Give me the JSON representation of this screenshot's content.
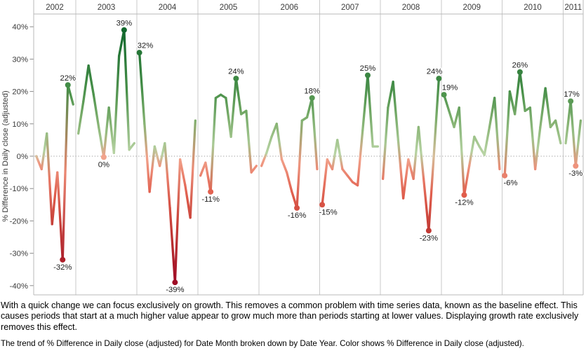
{
  "notes": {
    "paragraph": "With a quick change we can focus exclusively on growth.  This removes a common problem with time series data, known as the baseline effect.  This causes periods that start at a much higher value appear to grow much more than periods starting at lower values.  Displaying growth rate exclusively removes this effect.",
    "caption": "The trend of % Difference in Daily close (adjusted) for Date Month broken down by Date Year.  Color shows % Difference in Daily close (adjusted)."
  },
  "chart_data": {
    "type": "line",
    "title": "",
    "ylabel": "% Difference in Daily close (adjusted)",
    "x_field": "Date Month",
    "panel_field": "Date Year",
    "ylim": [
      -43,
      44
    ],
    "grid": "zero-line-only",
    "zero_line_style": "dotted",
    "y_ticks": [
      {
        "label": "40%",
        "value": 40
      },
      {
        "label": "30%",
        "value": 30
      },
      {
        "label": "20%",
        "value": 20
      },
      {
        "label": "10%",
        "value": 10
      },
      {
        "label": "0%",
        "value": 0
      },
      {
        "label": "-10%",
        "value": -10
      },
      {
        "label": "-20%",
        "value": -20
      },
      {
        "label": "-30%",
        "value": -30
      },
      {
        "label": "-40%",
        "value": -40
      }
    ],
    "colors": {
      "negative_dark": "#9c0824",
      "negative_light": "#f2a58e",
      "positive_light": "#bcd6a8",
      "positive_dark": "#0f662b",
      "divider": "#c9c9c9",
      "border": "#b9b9b9",
      "zero_line": "#9e9e9e",
      "axis_text": "#3c3c3c",
      "label_text": "#1c1c1c"
    },
    "color_scale_stops": [
      {
        "v": -40,
        "c": "#9c0824"
      },
      {
        "v": -25,
        "c": "#bb3330"
      },
      {
        "v": -12,
        "c": "#e05c4b"
      },
      {
        "v": -0.01,
        "c": "#f2a58e"
      },
      {
        "v": 0.01,
        "c": "#bcd6a8"
      },
      {
        "v": 10,
        "c": "#88b474"
      },
      {
        "v": 20,
        "c": "#489049"
      },
      {
        "v": 40,
        "c": "#0f662b"
      }
    ],
    "years": [
      {
        "label": "2002",
        "values": [
          0,
          -4,
          7,
          -21,
          -5,
          -32,
          22,
          16
        ],
        "annotations": [
          {
            "text": "22%",
            "month": 6,
            "placement": "above"
          },
          {
            "text": "-32%",
            "month": 5,
            "placement": "below"
          }
        ]
      },
      {
        "label": "2003",
        "values": [
          7,
          17,
          28,
          19,
          9,
          -0.3,
          15,
          1,
          31,
          39,
          2,
          4
        ],
        "annotations": [
          {
            "text": "39%",
            "month": 9,
            "placement": "above"
          },
          {
            "text": "0%",
            "month": 5,
            "placement": "below"
          }
        ]
      },
      {
        "label": "2004",
        "values": [
          32,
          10,
          -11,
          3,
          -3,
          4,
          -16,
          -39,
          -1,
          -9,
          -19,
          11
        ],
        "annotations": [
          {
            "text": "32%",
            "month": 0,
            "placement": "above"
          },
          {
            "text": "-39%",
            "month": 7,
            "placement": "below"
          }
        ]
      },
      {
        "label": "2005",
        "values": [
          -6,
          -2,
          -11,
          18,
          19,
          18,
          6,
          24,
          13,
          14,
          -5,
          -3
        ],
        "annotations": [
          {
            "text": "24%",
            "month": 7,
            "placement": "above"
          },
          {
            "text": "-11%",
            "month": 2,
            "placement": "below"
          }
        ]
      },
      {
        "label": "2006",
        "values": [
          -3,
          1,
          6,
          10,
          -1,
          -5,
          -11,
          -16,
          11,
          12,
          18,
          -4
        ],
        "annotations": [
          {
            "text": "18%",
            "month": 10,
            "placement": "above"
          },
          {
            "text": "-16%",
            "month": 7,
            "placement": "below"
          }
        ]
      },
      {
        "label": "2007",
        "values": [
          -15,
          -1,
          -4,
          5,
          -4,
          -6,
          -8,
          -9,
          8,
          25,
          3,
          3
        ],
        "annotations": [
          {
            "text": "25%",
            "month": 9,
            "placement": "above"
          },
          {
            "text": "-15%",
            "month": 0,
            "placement": "below"
          }
        ]
      },
      {
        "label": "2008",
        "values": [
          -7,
          15,
          23,
          5,
          -13,
          -1,
          -7,
          9,
          -7,
          -23,
          0,
          24
        ],
        "annotations": [
          {
            "text": "24%",
            "month": 11,
            "placement": "above"
          },
          {
            "text": "-23%",
            "month": 9,
            "placement": "below"
          }
        ]
      },
      {
        "label": "2009",
        "values": [
          19,
          14,
          9,
          15,
          -12,
          -3,
          6,
          3,
          0.4,
          9,
          18,
          -4
        ],
        "annotations": [
          {
            "text": "19%",
            "month": 0,
            "placement": "above"
          },
          {
            "text": "-12%",
            "month": 4,
            "placement": "below"
          }
        ]
      },
      {
        "label": "2010",
        "values": [
          -6,
          20,
          13,
          26,
          14,
          15,
          -4,
          9,
          21,
          9,
          11,
          4
        ],
        "annotations": [
          {
            "text": "26%",
            "month": 3,
            "placement": "above"
          },
          {
            "text": "-6%",
            "month": 0,
            "placement": "below"
          }
        ]
      },
      {
        "label": "2011",
        "values": [
          4,
          17,
          -3,
          11
        ],
        "annotations": [
          {
            "text": "17%",
            "month": 1,
            "placement": "above"
          },
          {
            "text": "-3%",
            "month": 2,
            "placement": "below"
          }
        ]
      }
    ]
  }
}
